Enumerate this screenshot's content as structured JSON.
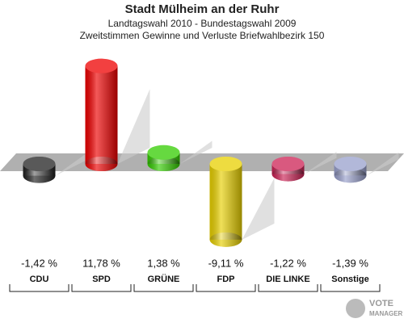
{
  "chart_data": {
    "type": "bar",
    "title": "Stadt Mülheim an der Ruhr",
    "subtitles": [
      "Landtagswahl 2010 - Bundestagswahl 2009",
      "Zweitstimmen Gewinne und Verluste Briefwahlbezirk 150"
    ],
    "categories": [
      "CDU",
      "SPD",
      "GRÜNE",
      "FDP",
      "DIE LINKE",
      "Sonstige"
    ],
    "values": [
      -1.42,
      11.78,
      1.38,
      -9.11,
      -1.22,
      -1.39
    ],
    "value_labels": [
      "-1,42 %",
      "11,78 %",
      "1,38 %",
      "-9,11 %",
      "-1,22 %",
      "-1,39 %"
    ],
    "colors": [
      "#222222",
      "#ee0000",
      "#33cc00",
      "#e8d000",
      "#cc2255",
      "#99a0cc"
    ],
    "logo": [
      "VOTE",
      "MANAGER"
    ]
  }
}
